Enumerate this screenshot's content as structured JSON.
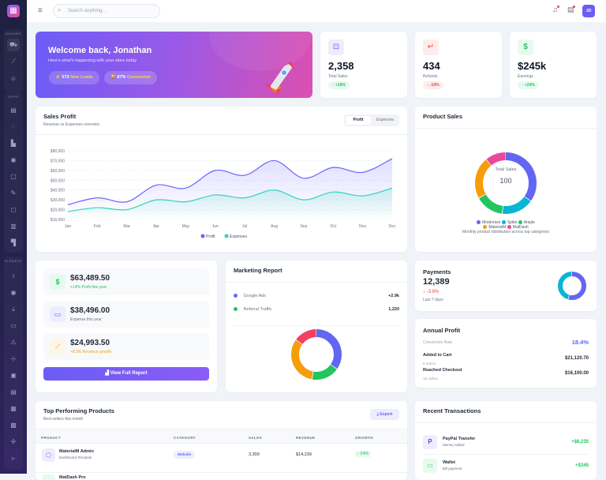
{
  "sidebar": {
    "logo_icon": "grid-icon",
    "sections": [
      {
        "label": "DASHBO",
        "icons": [
          "cart-icon",
          "chart-line-icon",
          "users-icon"
        ]
      },
      {
        "label": "APPS",
        "icons": [
          "calendar-icon",
          "chat-icon",
          "contacts-icon",
          "user-circle-icon",
          "notes-icon",
          "edit-icon",
          "shopping-bag-icon",
          "invoice-icon",
          "kanban-icon"
        ]
      },
      {
        "label": "ELEMENT",
        "icons": [
          "award-icon",
          "radio-icon",
          "download-icon",
          "card-icon",
          "alert-icon",
          "signpost-icon",
          "image-card-icon",
          "table-icon",
          "calendar-day-icon",
          "layout-icon",
          "tree-icon",
          "terminal-icon"
        ]
      }
    ]
  },
  "header": {
    "search_placeholder": "Search anything...",
    "avatar": "JD"
  },
  "welcome": {
    "title": "Welcome back, Jonathan",
    "subtitle": "Here's what's happening with your store today",
    "leads_value": "573",
    "leads_label": "New Leads",
    "conv_value": "87%",
    "conv_label": "Conversion"
  },
  "stats": [
    {
      "value": "2,358",
      "label": "Total Sales",
      "change": "↑ +18%",
      "icon": "bag-icon",
      "color": "#6366f1"
    },
    {
      "value": "434",
      "label": "Refunds",
      "change": "↓ -10%",
      "icon": "return-icon",
      "color": "#ef4444"
    },
    {
      "value": "$245k",
      "label": "Earnings",
      "change": "↑ +24%",
      "icon": "dollar-icon",
      "color": "#22c55e"
    }
  ],
  "sales_profit": {
    "title": "Sales Profit",
    "subtitle": "Revenue vs Expenses overview",
    "tabs": [
      "Profit",
      "Expenses"
    ]
  },
  "chart_data": [
    {
      "type": "area",
      "title": "Sales Profit",
      "categories": [
        "Jan",
        "Feb",
        "Mar",
        "Apr",
        "May",
        "Jun",
        "Jul",
        "Aug",
        "Sep",
        "Oct",
        "Nov",
        "Dec"
      ],
      "yticks": [
        "$80,000",
        "$70,000",
        "$60,000",
        "$50,000",
        "$40,000",
        "$30,000",
        "$20,000",
        "$10,000"
      ],
      "ylim": [
        10000,
        80000
      ],
      "series": [
        {
          "name": "Profit",
          "color": "#6c63ff",
          "values": [
            25000,
            32000,
            28000,
            45000,
            42000,
            60000,
            55000,
            70000,
            52000,
            63000,
            58000,
            72000
          ]
        },
        {
          "name": "Expenses",
          "color": "#2dd4bf",
          "values": [
            18000,
            22000,
            20000,
            30000,
            28000,
            35000,
            32000,
            40000,
            30000,
            38000,
            34000,
            42000
          ]
        }
      ]
    },
    {
      "type": "pie",
      "title": "Product Sales",
      "center_label": "Total Sales",
      "center_value": "100",
      "caption": "Monthly product distribution across top categories",
      "labels": [
        "Modernize",
        "Spike",
        "Ample",
        "MaterialM",
        "MatDash"
      ],
      "values": [
        35,
        17,
        15,
        22,
        11
      ],
      "colors": [
        "#6366f1",
        "#06b6d4",
        "#22c55e",
        "#f59e0b",
        "#ec4899"
      ]
    },
    {
      "type": "pie",
      "title": "Marketing Report",
      "values": [
        35,
        18,
        32,
        15
      ],
      "colors": [
        "#6366f1",
        "#22c55e",
        "#f59e0b",
        "#f43f5e"
      ]
    },
    {
      "type": "pie",
      "title": "Payments",
      "values": [
        55,
        45
      ],
      "colors": [
        "#6366f1",
        "#06b6d4"
      ]
    }
  ],
  "finance": [
    {
      "value": "$63,489.50",
      "label": "+14% Profit this year",
      "icon": "dollar-icon",
      "color": "#22c55e",
      "bg": "#e8faf0"
    },
    {
      "value": "$38,496.00",
      "label": "Expense this year",
      "icon": "wallet-icon",
      "color": "#6366f1",
      "bg": "#eeedfe"
    },
    {
      "value": "$24,993.50",
      "label": "+8.3% Revenue growth",
      "icon": "trend-icon",
      "color": "#f59e0b",
      "bg": "#fef6e4"
    }
  ],
  "view_report": "View Full Report",
  "marketing": {
    "title": "Marketing Report",
    "rows": [
      {
        "label": "Google Ads",
        "value": "+2.9k",
        "color": "#6366f1"
      },
      {
        "label": "Referral Traffic",
        "value": "1,220",
        "color": "#22c55e"
      }
    ]
  },
  "payments": {
    "title": "Payments",
    "value": "12,389",
    "change": "↓ -3.8%",
    "period": "Last 7 days"
  },
  "annual": {
    "title": "Annual Profit",
    "conv_label": "Conversion Rate",
    "conv_value": "18.4%",
    "rows": [
      {
        "label": "Added to Cart",
        "sub": "5 orders",
        "value": "$21,120.70"
      },
      {
        "label": "Reached Checkout",
        "sub": "15 orders",
        "value": "$16,100.00"
      }
    ]
  },
  "products": {
    "title": "Top Performing Products",
    "subtitle": "Best sellers this month",
    "export": "Export",
    "columns": [
      "PRODUCT",
      "CATEGORY",
      "SALES",
      "REVENUE",
      "GROWTH"
    ],
    "rows": [
      {
        "name": "MaterialM Admin",
        "sub": "Dashboard Template",
        "category": "Website",
        "sales": "3,300",
        "revenue": "$14,239",
        "growth": "↑ 24%"
      },
      {
        "name": "MatDash Pro"
      }
    ]
  },
  "transactions": {
    "title": "Recent Transactions",
    "items": [
      {
        "name": "PayPal Transfer",
        "sub": "Money Added",
        "amount": "+$6,235"
      },
      {
        "name": "Wallet",
        "sub": "Bill payment",
        "amount": "+$345"
      }
    ]
  }
}
